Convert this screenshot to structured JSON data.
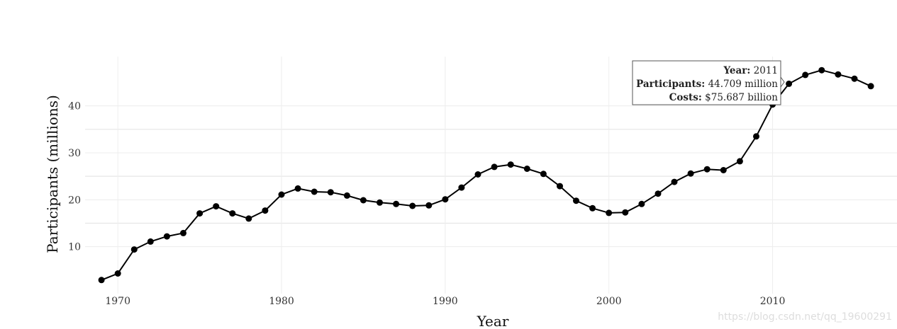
{
  "chart_data": {
    "type": "line",
    "title": "",
    "xlabel": "Year",
    "ylabel": "Participants (millions)",
    "xlim": [
      1968,
      2017.6
    ],
    "ylim": [
      0,
      50.5
    ],
    "x_ticks": [
      1970,
      1980,
      1990,
      2000,
      2010
    ],
    "y_ticks": [
      10,
      20,
      30,
      40
    ],
    "grid": true,
    "legend": "none",
    "series": [
      {
        "color": "#000000",
        "x": [
          1969,
          1970,
          1971,
          1972,
          1973,
          1974,
          1975,
          1976,
          1977,
          1978,
          1979,
          1980,
          1981,
          1982,
          1983,
          1984,
          1985,
          1986,
          1987,
          1988,
          1989,
          1990,
          1991,
          1992,
          1993,
          1994,
          1995,
          1996,
          1997,
          1998,
          1999,
          2000,
          2001,
          2002,
          2003,
          2004,
          2005,
          2006,
          2007,
          2008,
          2009,
          2010,
          2011,
          2012,
          2013,
          2014,
          2015,
          2016
        ],
        "values": [
          2.9,
          4.3,
          9.4,
          11.1,
          12.2,
          12.9,
          17.1,
          18.6,
          17.1,
          16.0,
          17.7,
          21.1,
          22.4,
          21.7,
          21.6,
          20.9,
          19.9,
          19.4,
          19.1,
          18.7,
          18.8,
          20.1,
          22.6,
          25.4,
          27.0,
          27.5,
          26.6,
          25.5,
          22.9,
          19.8,
          18.2,
          17.2,
          17.3,
          19.1,
          21.3,
          23.8,
          25.6,
          26.5,
          26.3,
          28.2,
          33.5,
          40.3,
          44.709,
          46.6,
          47.6,
          46.7,
          45.8,
          44.2
        ]
      }
    ],
    "tooltip": {
      "year_label": "Year:",
      "year_value": "2011",
      "participants_label": "Participants:",
      "participants_value": "44.709 million",
      "costs_label": "Costs:",
      "costs_value": "$75.687 billion"
    }
  },
  "watermark": "https://blog.csdn.net/qq_19600291"
}
